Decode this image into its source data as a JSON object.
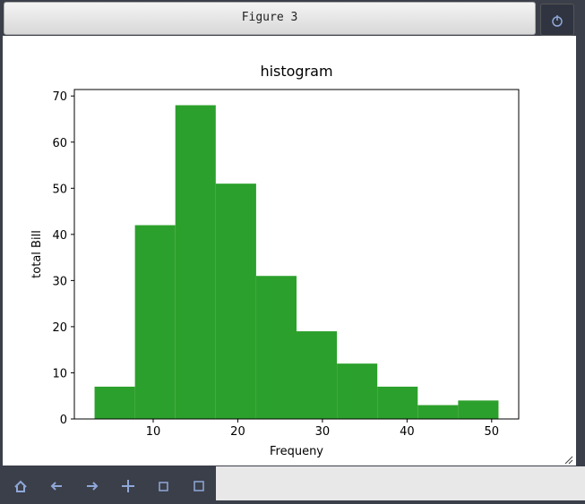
{
  "window": {
    "title": "Figure 3"
  },
  "chart_data": {
    "type": "histogram",
    "title": "histogram",
    "xlabel": "Frequeny",
    "ylabel": "total Bill",
    "bins": [
      3.07,
      7.844,
      12.618,
      17.392,
      22.166,
      26.94,
      31.714,
      36.488,
      41.262,
      46.036,
      50.81
    ],
    "counts": [
      7,
      42,
      68,
      51,
      31,
      19,
      12,
      7,
      3,
      4
    ],
    "color": "#2ca02c",
    "xlim": [
      0.683,
      53.197
    ],
    "xticks": [
      10,
      20,
      30,
      40,
      50
    ],
    "ylim": [
      0,
      71.4
    ],
    "yticks": [
      0,
      10,
      20,
      30,
      40,
      50,
      60,
      70
    ]
  }
}
